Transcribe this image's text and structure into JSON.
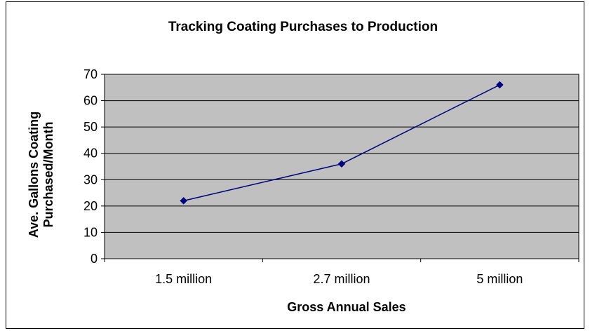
{
  "chart_data": {
    "type": "line",
    "title": "Tracking Coating Purchases to Production",
    "xlabel": "Gross Annual Sales",
    "ylabel_lines": [
      "Ave. Gallons Coating",
      "Purchased/Month"
    ],
    "categories": [
      "1.5 million",
      "2.7 million",
      "5 million"
    ],
    "values": [
      22,
      36,
      66
    ],
    "ylim": [
      0,
      70
    ],
    "yticks": [
      0,
      10,
      20,
      30,
      40,
      50,
      60,
      70
    ],
    "grid": true,
    "legend": "none",
    "colors": {
      "plot_background": "#c0c0c0",
      "line": "#000080",
      "marker": "#000080",
      "grid": "#000000"
    }
  }
}
